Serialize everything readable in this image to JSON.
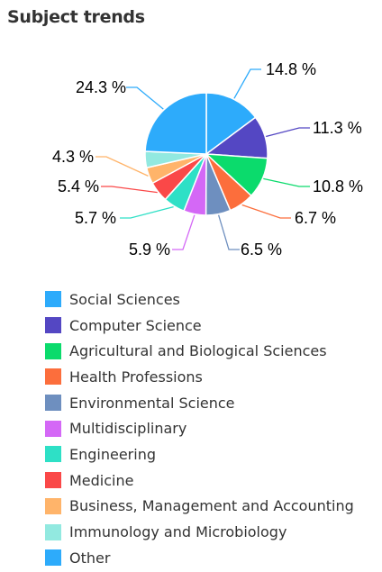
{
  "title": "Subject trends",
  "chart_data": {
    "type": "pie",
    "title": "Subject trends",
    "slices": [
      {
        "name": "Social Sciences",
        "value": 14.8,
        "label": "14.8 %",
        "color": "#2DABFB"
      },
      {
        "name": "Computer Science",
        "value": 11.3,
        "label": "11.3 %",
        "color": "#5447C3"
      },
      {
        "name": "Agricultural and Biological Sciences",
        "value": 10.8,
        "label": "10.8 %",
        "color": "#0BDB6C"
      },
      {
        "name": "Health Professions",
        "value": 6.7,
        "label": "6.7 %",
        "color": "#FC6E3C"
      },
      {
        "name": "Environmental Science",
        "value": 6.5,
        "label": "6.5 %",
        "color": "#6E8FBF"
      },
      {
        "name": "Multidisciplinary",
        "value": 5.9,
        "label": "5.9 %",
        "color": "#D468F6"
      },
      {
        "name": "Engineering",
        "value": 5.7,
        "label": "5.7 %",
        "color": "#2EE0C6"
      },
      {
        "name": "Medicine",
        "value": 5.4,
        "label": "5.4 %",
        "color": "#FA4848"
      },
      {
        "name": "Business, Management and Accounting",
        "value": 4.3,
        "label": "4.3 %",
        "color": "#FFB46A"
      },
      {
        "name": "Immunology and Microbiology",
        "value": 4.3,
        "label": "4.3 %",
        "color": "#92E9E0"
      },
      {
        "name": "Other",
        "value": 24.3,
        "label": "24.3 %",
        "color": "#2DABFB"
      }
    ],
    "legend_position": "bottom"
  }
}
